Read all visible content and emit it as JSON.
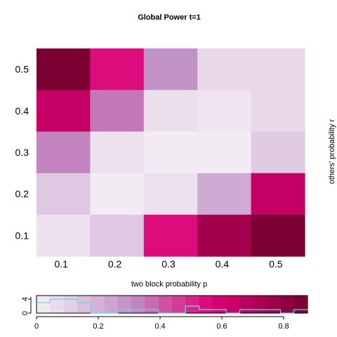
{
  "chart_data": [
    {
      "type": "heatmap",
      "title": "Global Power t=1",
      "xlabel": "two block probability p",
      "ylabel": "others' probability r",
      "x_categories": [
        "0.1",
        "0.2",
        "0.3",
        "0.4",
        "0.5"
      ],
      "y_categories": [
        "0.1",
        "0.2",
        "0.3",
        "0.4",
        "0.5"
      ],
      "values_by_row_from_top": [
        [
          0.87,
          0.55,
          0.3,
          0.08,
          0.08
        ],
        [
          0.65,
          0.35,
          0.06,
          0.04,
          0.08
        ],
        [
          0.33,
          0.05,
          0.02,
          0.02,
          0.12
        ],
        [
          0.13,
          0.02,
          0.05,
          0.22,
          0.65
        ],
        [
          0.05,
          0.13,
          0.55,
          0.75,
          0.87
        ]
      ],
      "value_range": [
        0,
        0.88
      ],
      "grid": false,
      "colors": {
        "low": "#f6f1f7",
        "mid_lilac": "#c08fc4",
        "high_pink": "#de0077",
        "max": "#780030"
      }
    },
    {
      "type": "bar",
      "role": "color-key",
      "x_range": [
        0,
        0.88
      ],
      "x_ticks": [
        "0",
        "0.2",
        "0.4",
        "0.6",
        "0.8"
      ],
      "y_ticks": [
        "0",
        "4"
      ],
      "y_range": [
        0,
        5
      ],
      "bin_edges": [
        0,
        0.044,
        0.088,
        0.132,
        0.176,
        0.22,
        0.264,
        0.308,
        0.352,
        0.396,
        0.44,
        0.484,
        0.528,
        0.572,
        0.616,
        0.66,
        0.704,
        0.748,
        0.792,
        0.836,
        0.88
      ],
      "histogram_counts": [
        3,
        4,
        4,
        3,
        0,
        0,
        1,
        1,
        1,
        0,
        0,
        2,
        1,
        1,
        0,
        1,
        1,
        1,
        0,
        1
      ],
      "histogram_color": "#5fd9f2"
    }
  ]
}
